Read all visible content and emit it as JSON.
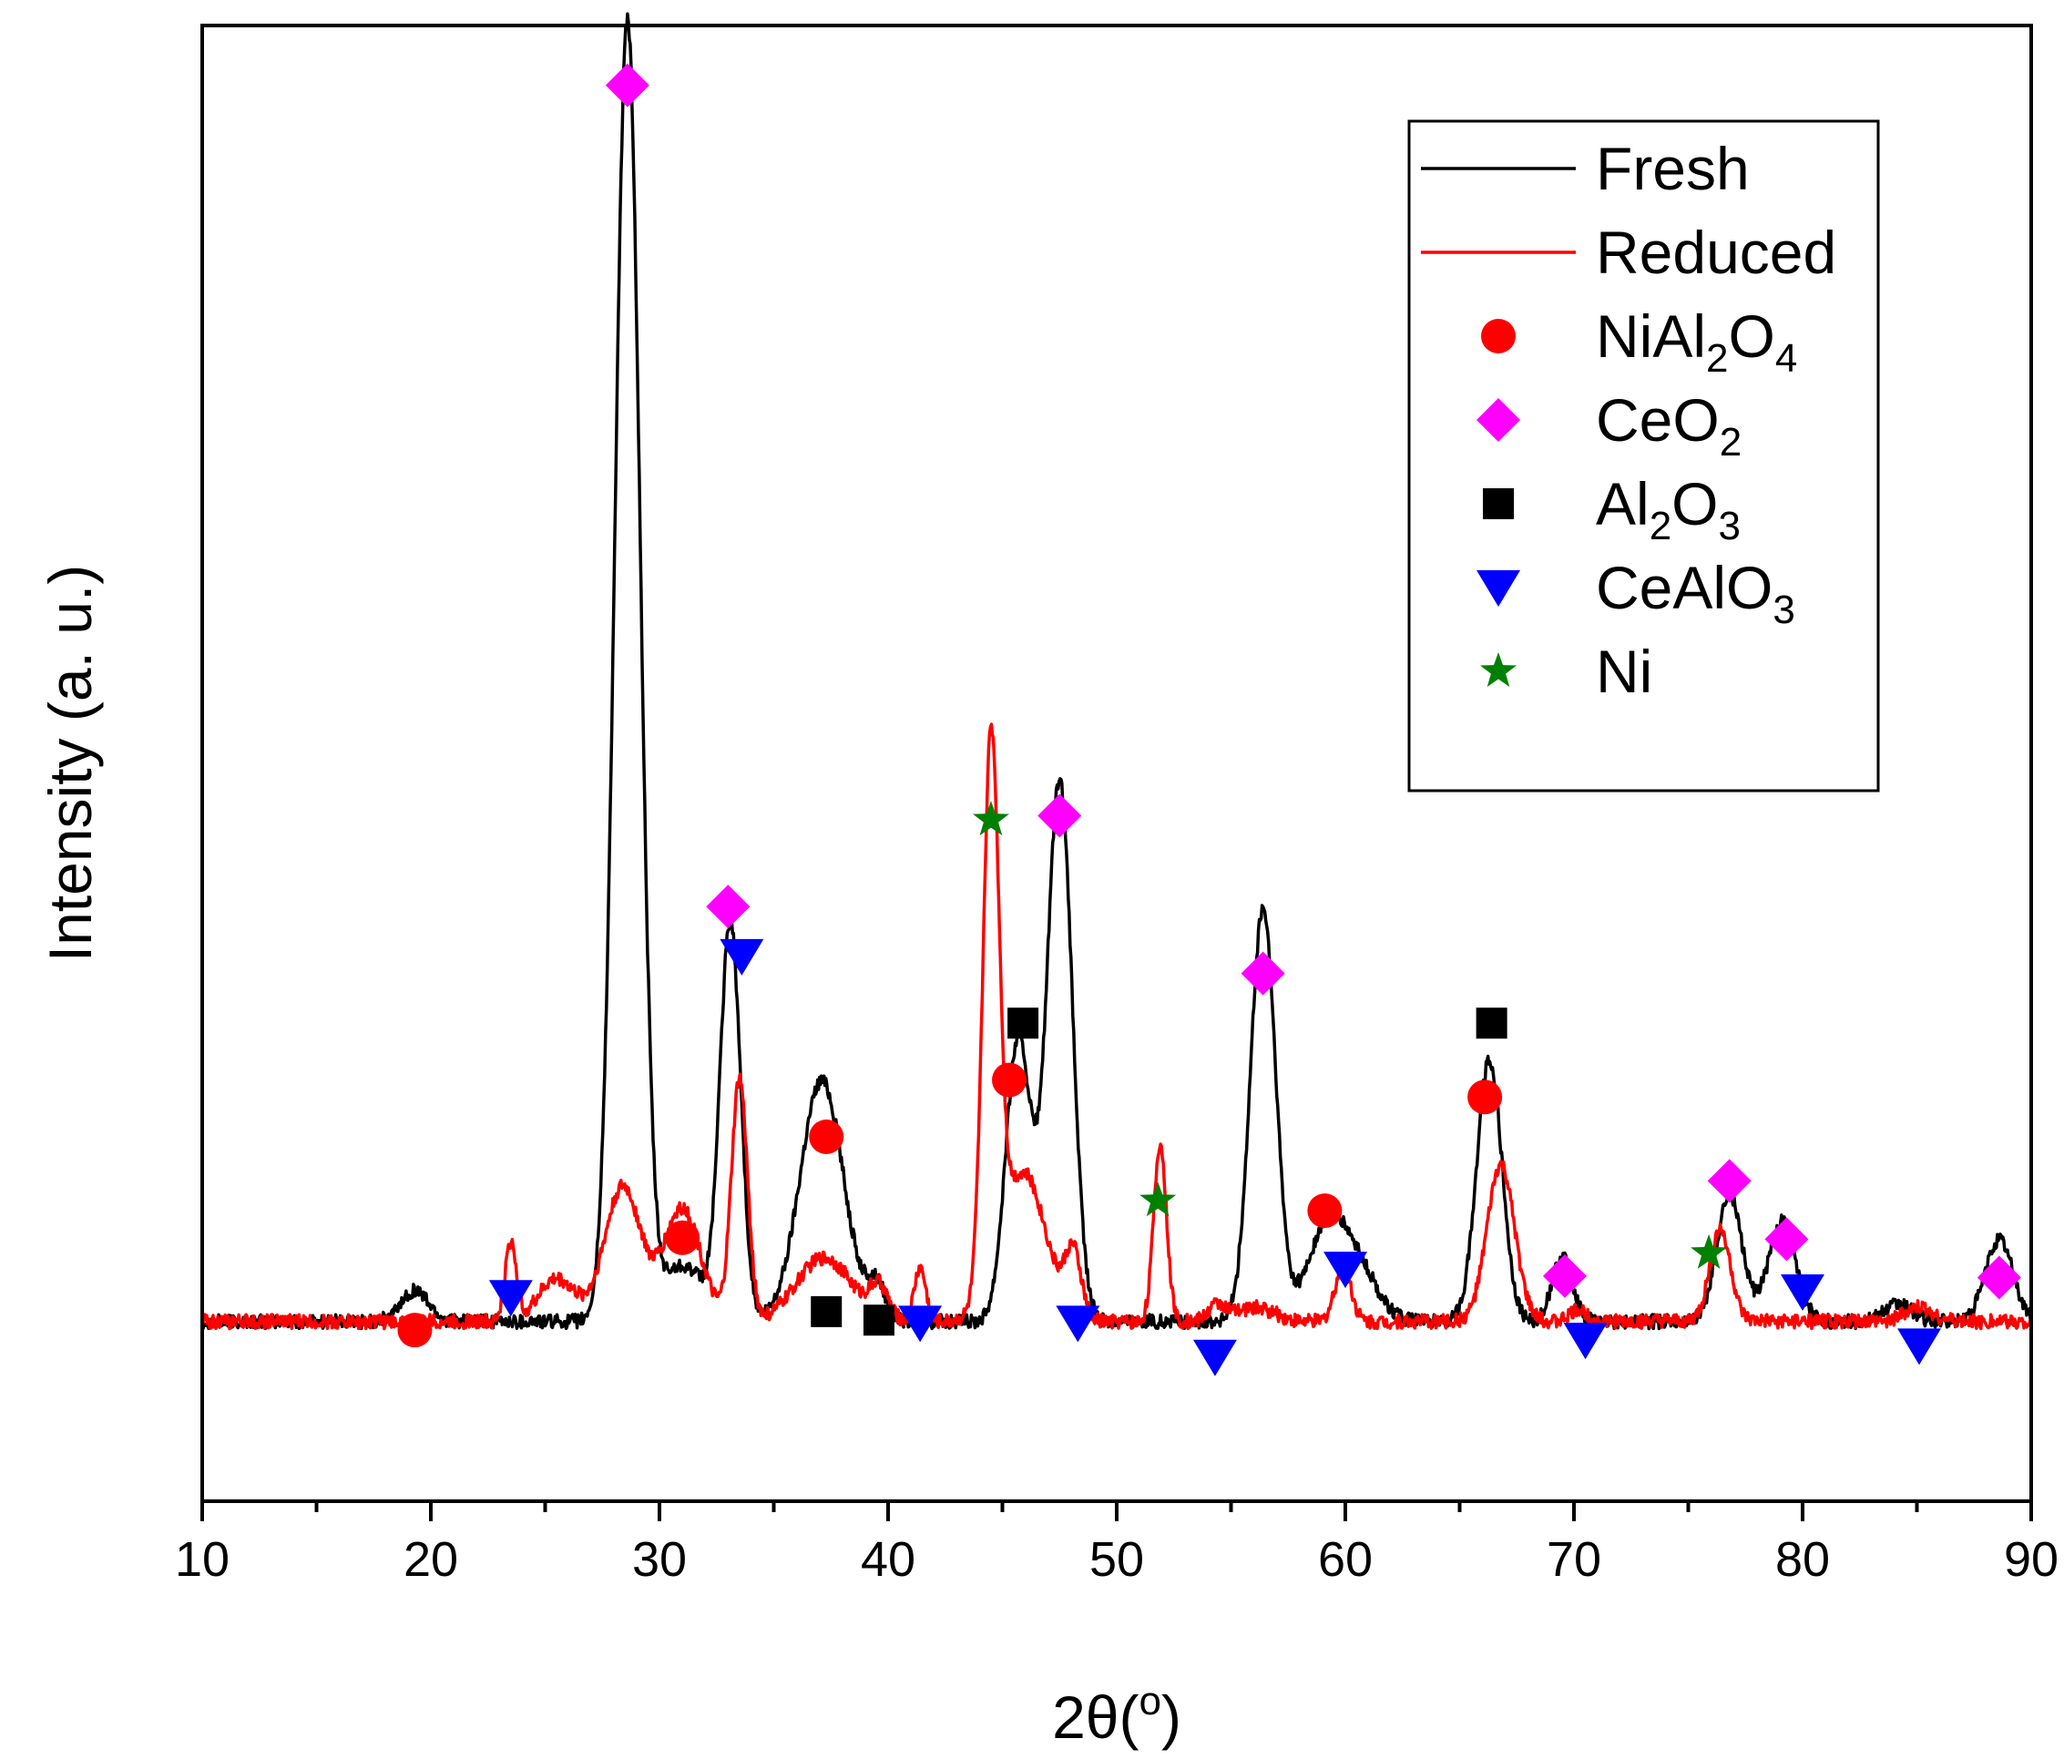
{
  "chart_data": {
    "type": "line",
    "xlabel": "2θ(",
    "xlabel_sup": "o",
    "xlabel_end": ")",
    "ylabel": "Intensity (a. u.)",
    "xlim": [
      10,
      90
    ],
    "ylim": [
      0,
      1000
    ],
    "x_ticks": [
      "10",
      "20",
      "30",
      "40",
      "50",
      "60",
      "70",
      "80",
      "90"
    ],
    "legend": {
      "position": "top-right",
      "entries": [
        {
          "key": "fresh",
          "marker": "line",
          "color": "#000000",
          "label": "Fresh",
          "label_sub": []
        },
        {
          "key": "reduced",
          "marker": "line",
          "color": "#ff0000",
          "label": "Reduced",
          "label_sub": []
        },
        {
          "key": "nial2o4",
          "marker": "circle",
          "color": "#ff0000",
          "label_parts": [
            "NiAl",
            "2",
            "O",
            "4"
          ]
        },
        {
          "key": "ceo2",
          "marker": "diamond",
          "color": "#ff00ff",
          "label_parts": [
            "CeO",
            "2"
          ]
        },
        {
          "key": "al2o3",
          "marker": "square",
          "color": "#000000",
          "label_parts": [
            "Al",
            "2",
            "O",
            "3"
          ]
        },
        {
          "key": "cealo3",
          "marker": "triangle-down",
          "color": "#0000ff",
          "label_parts": [
            "CeAlO",
            "3"
          ]
        },
        {
          "key": "ni",
          "marker": "star",
          "color": "#008000",
          "label_parts": [
            "Ni"
          ]
        }
      ]
    },
    "series": [
      {
        "name": "Fresh",
        "color": "#000000",
        "baseline": 70,
        "peaks": [
          [
            19.3,
            22,
            0.6
          ],
          [
            28.6,
            915,
            0.55
          ],
          [
            31.0,
            40,
            0.9
          ],
          [
            33.1,
            280,
            0.45
          ],
          [
            37.1,
            170,
            0.95
          ],
          [
            39.5,
            25,
            0.4
          ],
          [
            45.7,
            200,
            0.55
          ],
          [
            47.5,
            380,
            0.55
          ],
          [
            56.4,
            290,
            0.55
          ],
          [
            59.3,
            70,
            0.9
          ],
          [
            60.8,
            25,
            0.8
          ],
          [
            66.3,
            185,
            0.55
          ],
          [
            69.5,
            45,
            0.45
          ],
          [
            76.8,
            90,
            0.55
          ],
          [
            79.1,
            70,
            0.6
          ],
          [
            84.2,
            12,
            0.6
          ],
          [
            88.6,
            58,
            0.6
          ]
        ]
      },
      {
        "name": "Reduced",
        "color": "#ff0000",
        "baseline": 70,
        "peaks": [
          [
            23.5,
            55,
            0.25
          ],
          [
            25.5,
            30,
            0.8
          ],
          [
            28.4,
            95,
            0.8
          ],
          [
            31.0,
            80,
            0.8
          ],
          [
            33.5,
            170,
            0.35
          ],
          [
            37.2,
            45,
            1.2
          ],
          [
            39.6,
            22,
            0.4
          ],
          [
            41.4,
            38,
            0.25
          ],
          [
            44.5,
            380,
            0.35
          ],
          [
            45.9,
            105,
            1.0
          ],
          [
            48.1,
            45,
            0.35
          ],
          [
            51.9,
            125,
            0.28
          ],
          [
            54.4,
            12,
            0.4
          ],
          [
            56.1,
            10,
            0.8
          ],
          [
            59.9,
            40,
            0.35
          ],
          [
            66.8,
            110,
            0.6
          ],
          [
            70.2,
            8,
            0.4
          ],
          [
            76.4,
            65,
            0.45
          ],
          [
            85.1,
            10,
            0.6
          ]
        ]
      }
    ],
    "phase_markers": [
      {
        "phase": "nial2o4",
        "points": [
          [
            19.3,
            64
          ],
          [
            31.0,
            129
          ],
          [
            37.3,
            200
          ],
          [
            45.3,
            240
          ],
          [
            59.1,
            148
          ],
          [
            66.1,
            228
          ]
        ]
      },
      {
        "phase": "ceo2",
        "points": [
          [
            28.6,
            940
          ],
          [
            33.0,
            362
          ],
          [
            47.5,
            426
          ],
          [
            56.4,
            315
          ],
          [
            69.6,
            102
          ],
          [
            76.8,
            169
          ],
          [
            79.3,
            128
          ],
          [
            88.6,
            101
          ]
        ]
      },
      {
        "phase": "al2o3",
        "points": [
          [
            37.3,
            77
          ],
          [
            39.6,
            71
          ],
          [
            45.9,
            280
          ],
          [
            66.4,
            280
          ]
        ]
      },
      {
        "phase": "cealo3",
        "points": [
          [
            23.5,
            87
          ],
          [
            33.6,
            327
          ],
          [
            41.4,
            69
          ],
          [
            48.3,
            69
          ],
          [
            54.3,
            45
          ],
          [
            60.0,
            107
          ],
          [
            70.5,
            57
          ],
          [
            80.0,
            91
          ],
          [
            85.1,
            53
          ]
        ]
      },
      {
        "phase": "ni",
        "points": [
          [
            44.5,
            423
          ],
          [
            51.8,
            155
          ],
          [
            75.9,
            118
          ]
        ]
      }
    ]
  }
}
